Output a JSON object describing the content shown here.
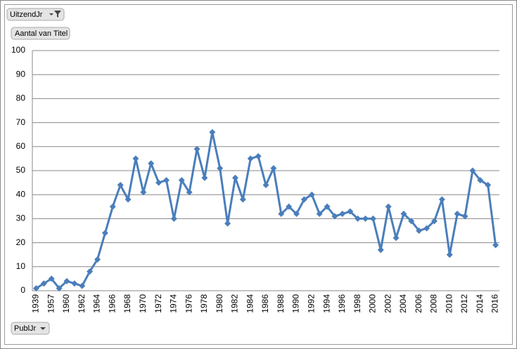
{
  "chart_data": {
    "type": "line",
    "buttons": {
      "filter": "UitzendJr",
      "values": "Aantal van Titel",
      "axis": "PublJr"
    },
    "categories": [
      "1939",
      null,
      "1957",
      null,
      "1960",
      null,
      "1962",
      null,
      "1964",
      null,
      "1966",
      null,
      "1968",
      null,
      "1970",
      null,
      "1972",
      null,
      "1974",
      null,
      "1976",
      null,
      "1978",
      null,
      "1980",
      null,
      "1982",
      null,
      "1984",
      null,
      "1986",
      null,
      "1988",
      null,
      "1990",
      null,
      "1992",
      null,
      "1994",
      null,
      "1996",
      null,
      "1998",
      null,
      "2000",
      null,
      "2002",
      null,
      "2004",
      null,
      "2006",
      null,
      "2008",
      null,
      "2010",
      null,
      "2012",
      null,
      "2014",
      null,
      "2016"
    ],
    "series": [
      {
        "color": "#4a7ebb",
        "values": [
          1,
          3,
          5,
          1,
          4,
          3,
          2,
          8,
          13,
          24,
          35,
          44,
          38,
          55,
          41,
          53,
          45,
          46,
          30,
          46,
          41,
          59,
          47,
          66,
          51,
          28,
          47,
          38,
          55,
          56,
          44,
          51,
          32,
          35,
          32,
          38,
          40,
          32,
          35,
          31,
          32,
          33,
          30,
          30,
          30,
          17,
          35,
          22,
          32,
          29,
          25,
          26,
          29,
          38,
          15,
          32,
          31,
          50,
          46,
          44,
          19
        ]
      }
    ],
    "ylim": [
      0,
      100
    ],
    "yticks": [
      0,
      10,
      20,
      30,
      40,
      50,
      60,
      70,
      80,
      90,
      100
    ],
    "grid": true
  }
}
